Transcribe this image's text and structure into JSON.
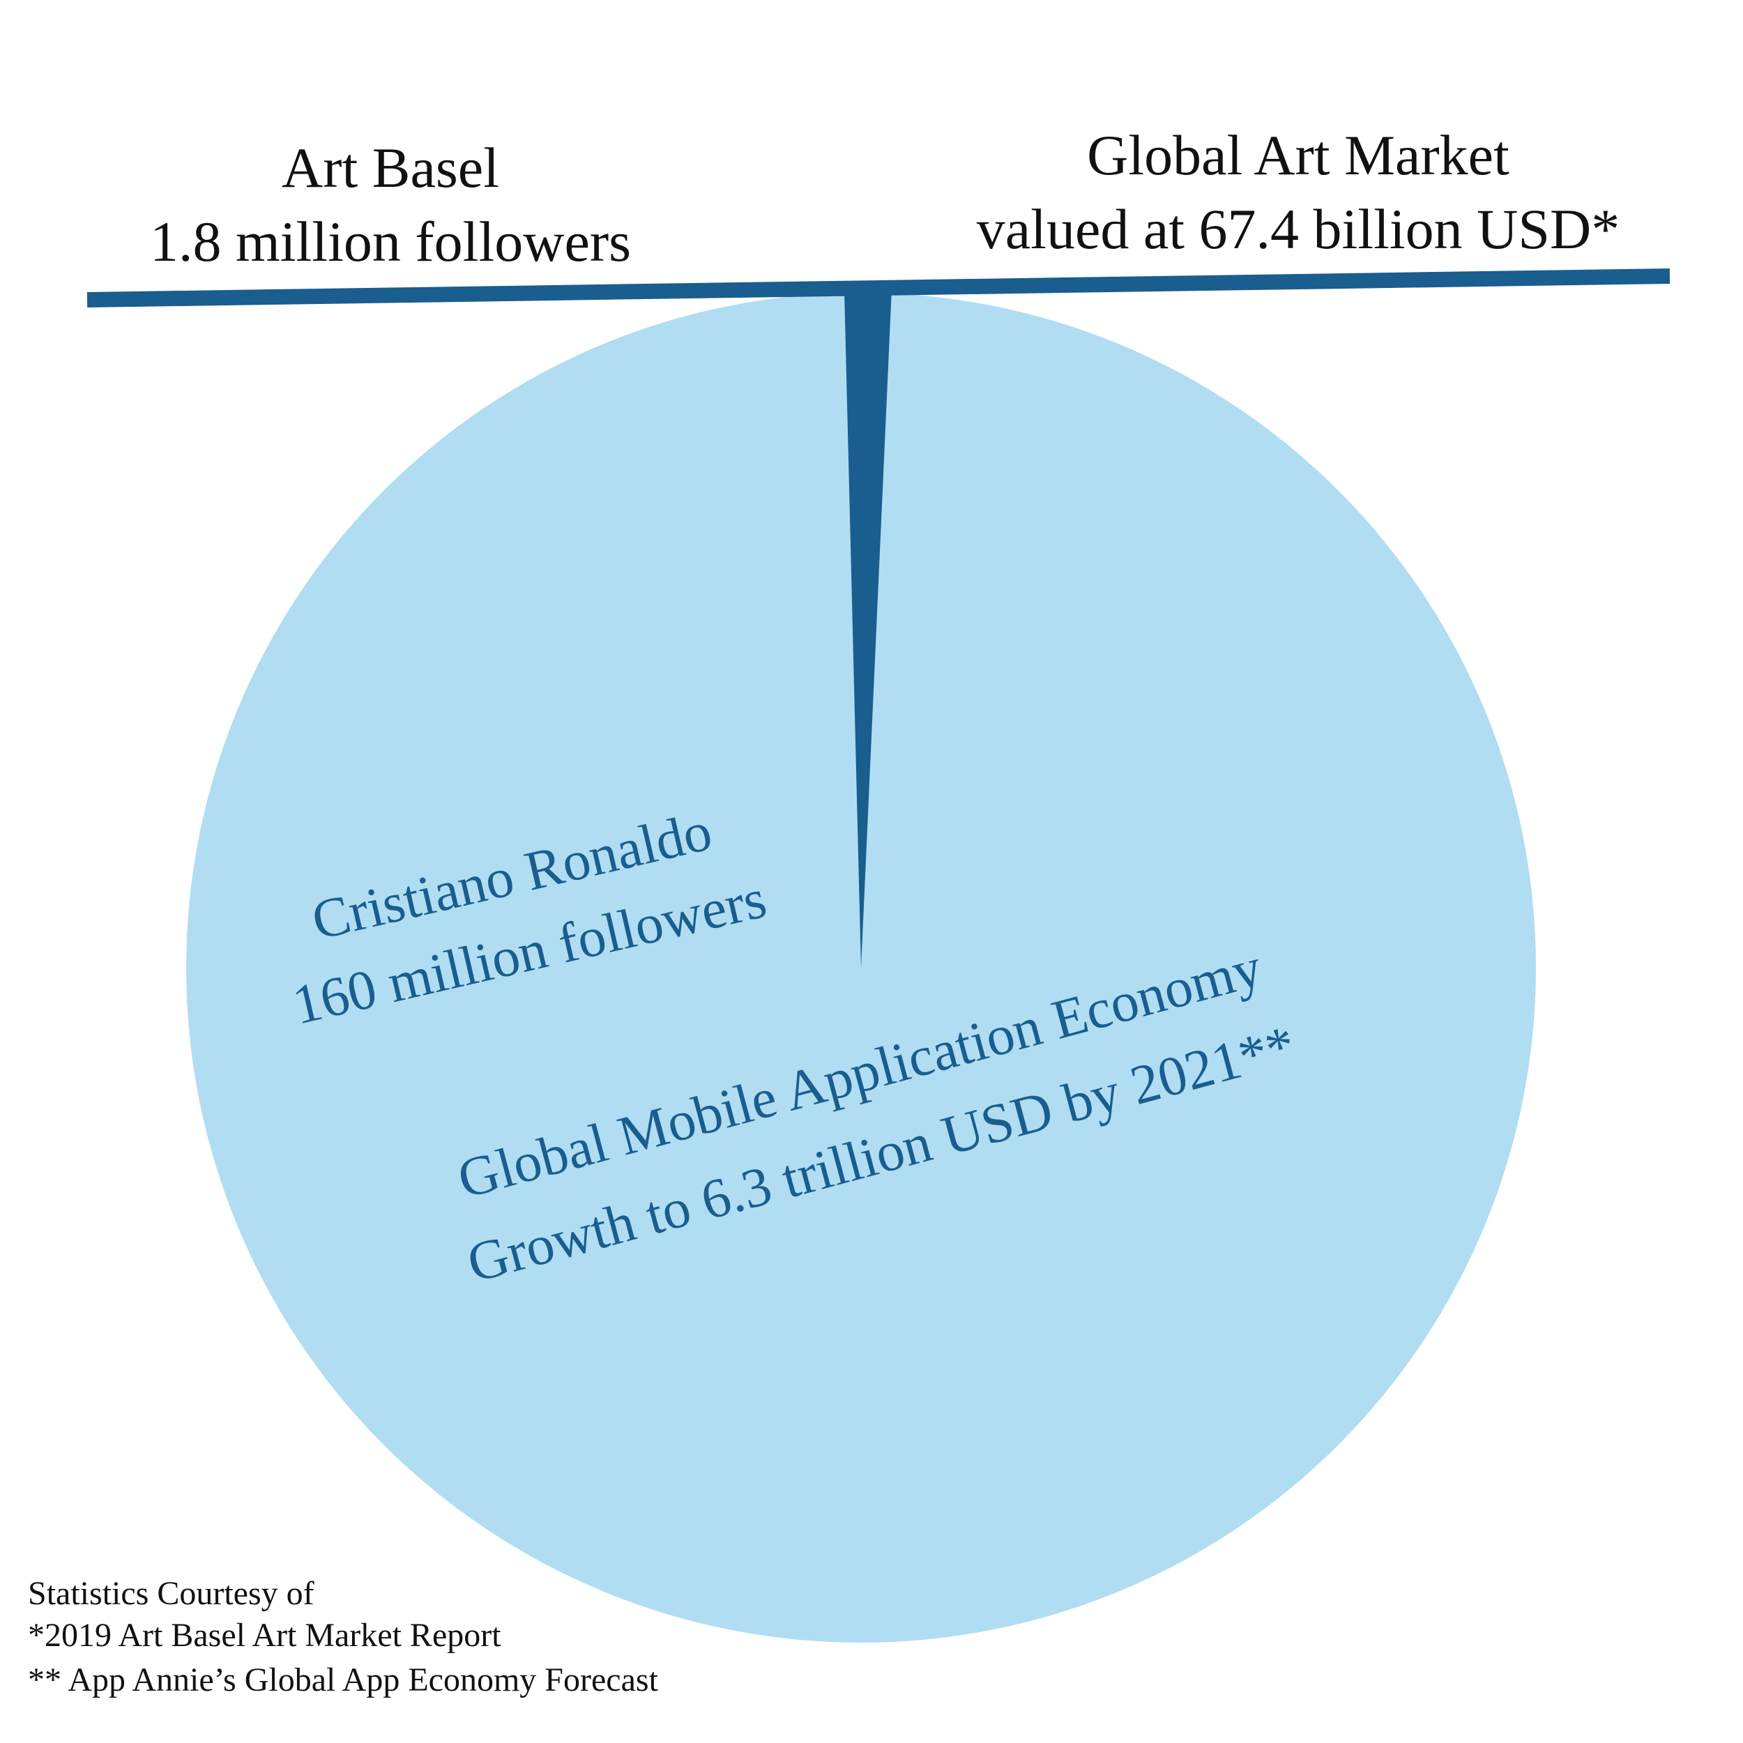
{
  "chart_data": {
    "type": "pie",
    "title": "",
    "slices": [
      {
        "label_lines": [
          "Cristiano Ronaldo",
          "160 million followers"
        ],
        "value": 160,
        "color": "#b1ddf2",
        "text_color": "#1a5d8f"
      },
      {
        "label_lines": [
          "Art Basel",
          "1.8 million followers"
        ],
        "value": 1.8,
        "color": "#1a5d8f",
        "text_color": "#111111"
      }
    ],
    "annotations": [
      {
        "label_lines": [
          "Global Art Market",
          "valued at 67.4 billion USD*"
        ],
        "value_text": "67.4 billion USD",
        "color": "#111111"
      },
      {
        "label_lines": [
          "Global Mobile Application Economy",
          "Growth to 6.3 trillion USD by 2021**"
        ],
        "value_text": "6.3 trillion USD",
        "color": "#1a5d8f"
      }
    ],
    "divider_color": "#1a5d8f"
  },
  "footnotes": {
    "heading": "Statistics Courtesy of",
    "source_1": "*2019 Art Basel Art Market Report",
    "source_2": "** App Annie’s Global App Economy Forecast"
  }
}
